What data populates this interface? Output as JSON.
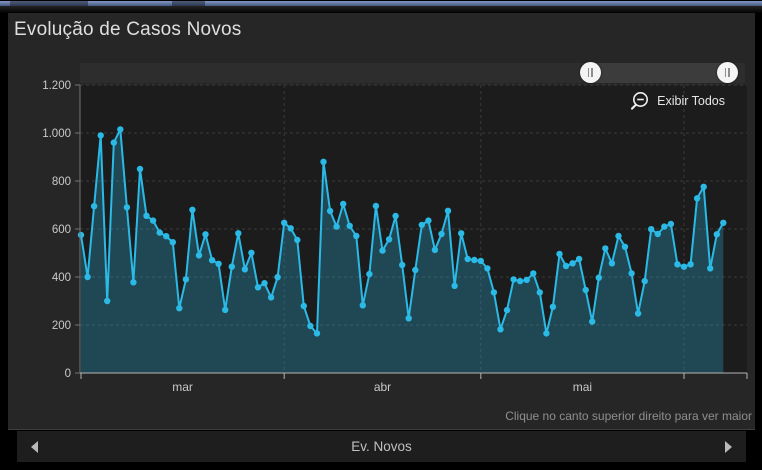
{
  "header": {
    "title": "Evolução de Casos Novos"
  },
  "controls": {
    "exibir_todos_label": "Exibir Todos",
    "range_slider": {
      "left_handle_pct": 76.7,
      "right_handle_pct": 97.3
    }
  },
  "footer": {
    "hint": "Clique no canto superior direito para ver maior",
    "nav_label": "Ev. Novos"
  },
  "colors": {
    "accent_line": "#2bb9e6",
    "area_fill": "rgba(43,185,230,0.28)",
    "plot_background": "#1c1c1c",
    "widget_background": "#262626",
    "page_background": "#000000",
    "top_bar_blue": "#8096c4",
    "axis_text": "#c9c9c9",
    "hint_text": "#8f8f8f"
  },
  "chart_data": {
    "type": "area",
    "title": "Evolução de Casos Novos",
    "series": [
      {
        "name": "Ev. Novos",
        "values": [
          575,
          400,
          695,
          990,
          300,
          960,
          1015,
          690,
          378,
          850,
          655,
          635,
          585,
          570,
          545,
          270,
          390,
          680,
          490,
          578,
          470,
          455,
          263,
          443,
          582,
          432,
          501,
          357,
          374,
          315,
          399,
          626,
          603,
          554,
          279,
          196,
          165,
          880,
          675,
          610,
          704,
          613,
          571,
          282,
          412,
          696,
          510,
          557,
          654,
          450,
          228,
          429,
          617,
          635,
          513,
          579,
          676,
          363,
          582,
          475,
          471,
          467,
          436,
          336,
          182,
          262,
          390,
          383,
          388,
          415,
          336,
          165,
          276,
          496,
          446,
          457,
          475,
          346,
          214,
          397,
          519,
          457,
          571,
          526,
          415,
          248,
          383,
          599,
          579,
          610,
          621,
          453,
          443,
          453,
          728,
          776,
          436,
          578,
          626
        ]
      }
    ],
    "x_axis": {
      "unit": "day",
      "month_tick_labels": [
        "mar",
        "abr",
        "mai"
      ],
      "month_start_day_indices": [
        0,
        31,
        61,
        92
      ],
      "month_label_center_days": [
        15.5,
        46,
        76.5
      ]
    },
    "y_axis": {
      "range": [
        0,
        1200
      ],
      "tick_values": [
        0,
        200,
        400,
        600,
        800,
        1000,
        1200
      ],
      "tick_labels": [
        "0",
        "200",
        "400",
        "600",
        "800",
        "1.000",
        "1.200"
      ]
    },
    "grid": "dashed",
    "legend_position": "bottom"
  }
}
